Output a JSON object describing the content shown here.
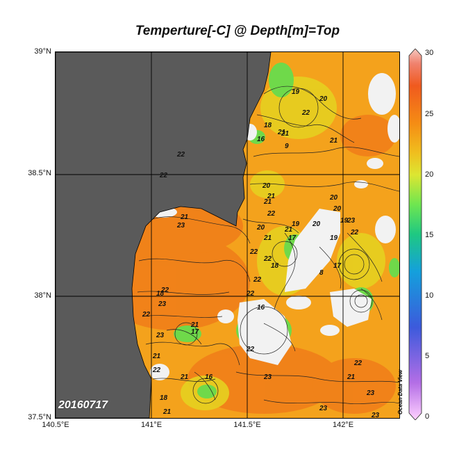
{
  "title": "Temperture[-C] @ Depth[m]=Top",
  "date_stamp": "20160717",
  "credit": "Ocean Data View",
  "axes": {
    "lat_labels": [
      "39°N",
      "38.5°N",
      "38°N",
      "37.5°N"
    ],
    "lon_labels": [
      "140.5°E",
      "141°E",
      "141.5°E",
      "142°E"
    ]
  },
  "colorbar": {
    "min": 0,
    "max": 30,
    "tick_labels": [
      "30",
      "25",
      "20",
      "15",
      "10",
      "5",
      "0"
    ],
    "colors": [
      "#ffd2ff",
      "#b46ee6",
      "#3c5adc",
      "#14a0dc",
      "#1ec882",
      "#6ee650",
      "#dce632",
      "#f0be1e",
      "#f58c14",
      "#f05a1e",
      "#f0826e",
      "#f5c8c0"
    ]
  },
  "colors": {
    "land": "#5a5a5a",
    "no_data": "#f2f2f2",
    "sea_warm": "#f4a21c",
    "sea_warmer": "#f07d19",
    "sea_cool": "#e6d020",
    "sea_cold": "#6fd94a"
  },
  "contour_labels": [
    "21",
    "16",
    "19",
    "22",
    "20",
    "18",
    "21",
    "9",
    "21",
    "22",
    "22",
    "20",
    "21",
    "21",
    "23",
    "22",
    "20",
    "21",
    "22",
    "21",
    "19",
    "17",
    "18",
    "22",
    "22",
    "22",
    "21",
    "20",
    "19",
    "22",
    "8",
    "20",
    "16",
    "20",
    "17",
    "22",
    "18",
    "19",
    "23",
    "21",
    "22",
    "23",
    "22",
    "21",
    "23",
    "21",
    "17",
    "16",
    "18",
    "21",
    "23",
    "23",
    "22",
    "21",
    "22",
    "23",
    "23"
  ]
}
